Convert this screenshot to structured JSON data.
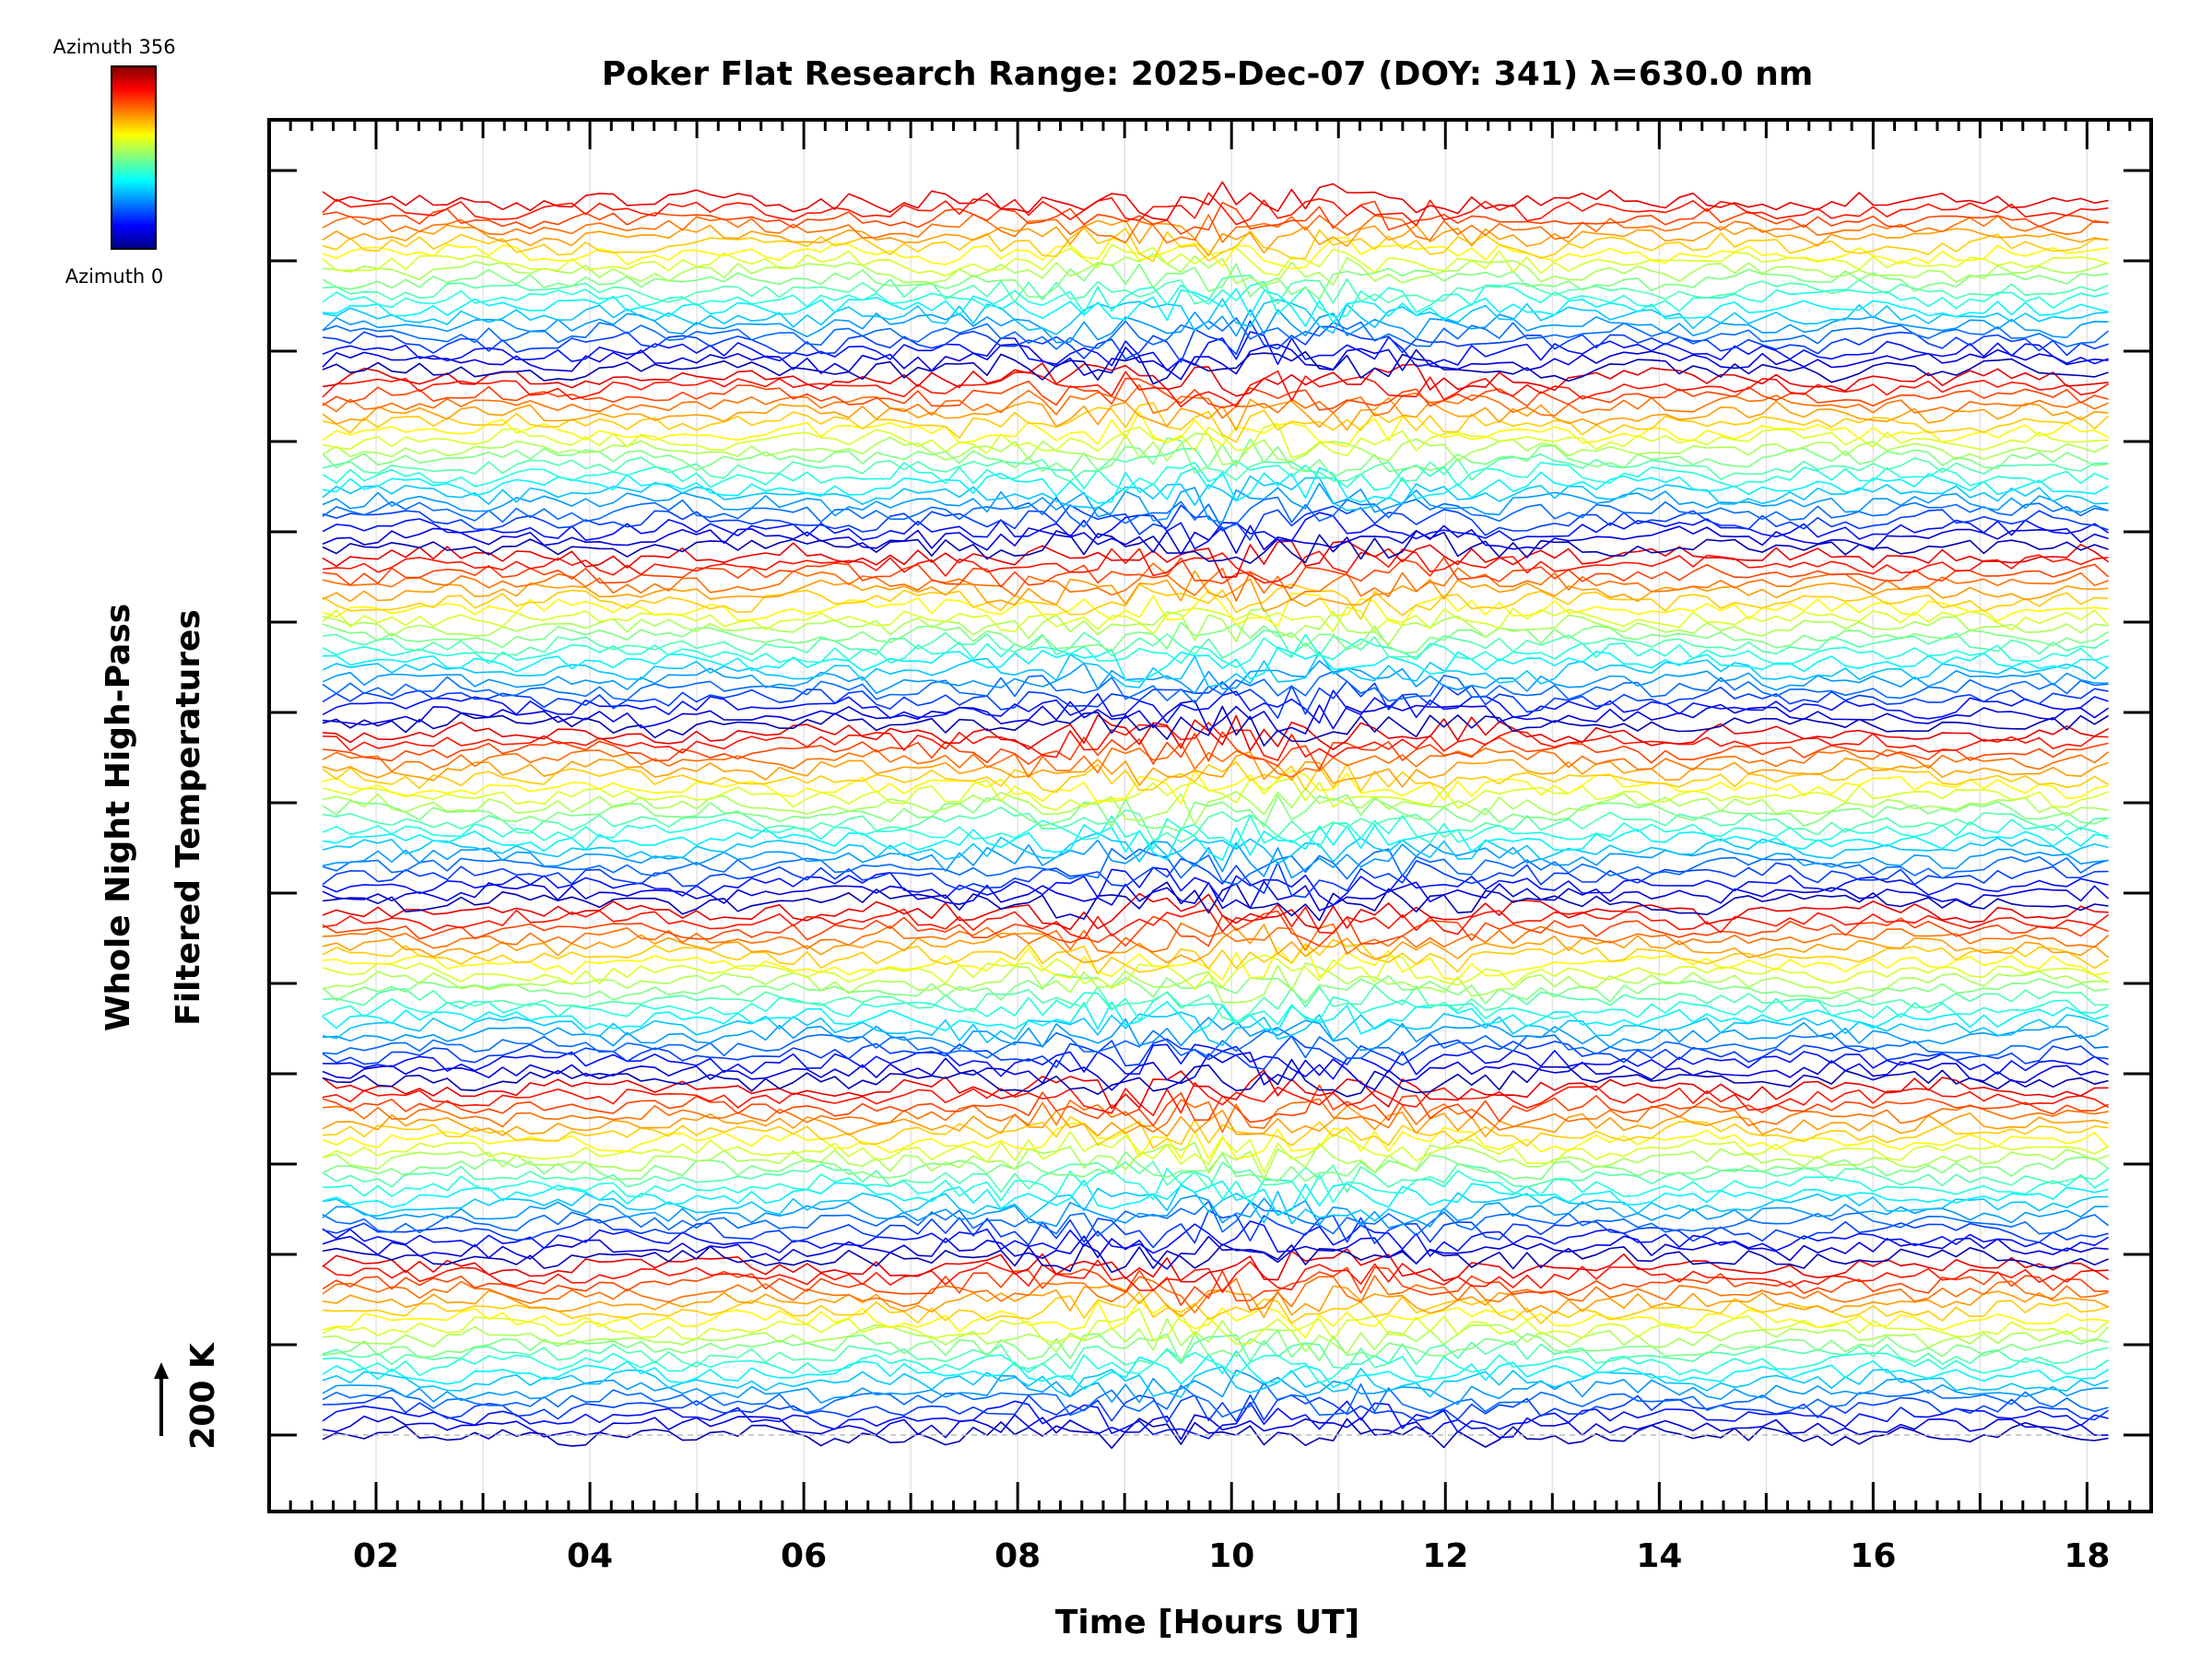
{
  "chart_data": {
    "type": "line",
    "title": "Poker Flat Research Range: 2025-Dec-07 (DOY: 341) λ=630.0 nm",
    "xlabel": "Time [Hours UT]",
    "ylabel_line1": "Whole Night High-Pass",
    "ylabel_line2": "Filtered Temperatures",
    "scale_label": "200 K",
    "xlim": [
      1.0,
      18.6
    ],
    "x_tick_labels": [
      "02",
      "04",
      "06",
      "08",
      "10",
      "12",
      "14",
      "16",
      "18"
    ],
    "x_tick_values": [
      2,
      4,
      6,
      8,
      10,
      12,
      14,
      16,
      18
    ],
    "time_range": [
      1.5,
      18.2
    ],
    "traces": 140,
    "groups": 7,
    "colorbar": {
      "top_label": "Azimuth 356",
      "bottom_label": "Azimuth 0",
      "min": 0,
      "max": 356
    }
  }
}
